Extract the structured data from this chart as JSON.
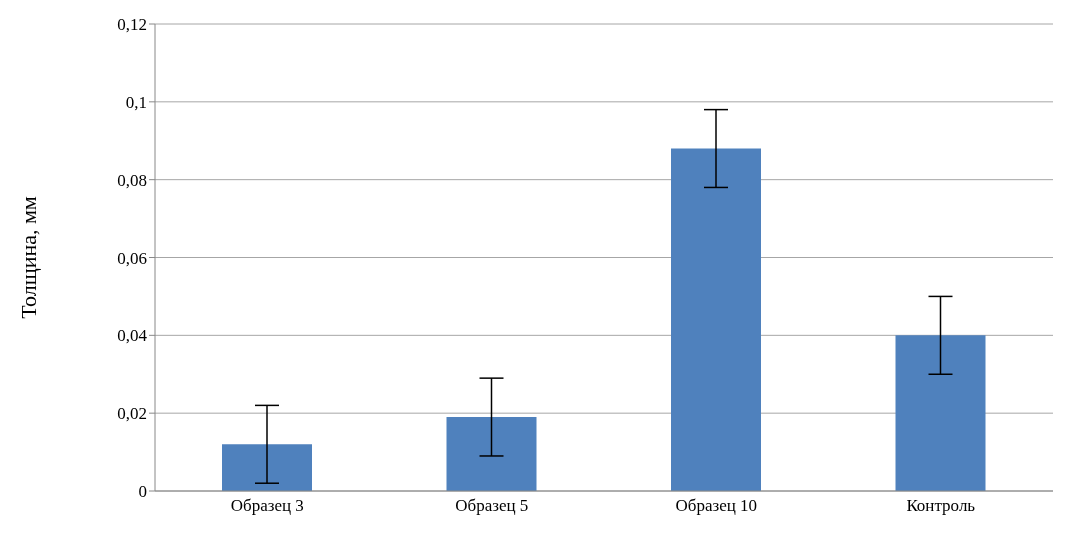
{
  "chart_data": {
    "type": "bar",
    "ylabel": "Толщина, мм",
    "categories": [
      "Образец 3",
      "Образец 5",
      "Образец 10",
      "Контроль"
    ],
    "values": [
      0.012,
      0.019,
      0.088,
      0.04
    ],
    "errors": [
      0.01,
      0.01,
      0.01,
      0.01
    ],
    "color": "#4f81bd",
    "ylim": [
      0,
      0.12
    ],
    "yticks": [
      {
        "value": 0,
        "label": "0"
      },
      {
        "value": 0.02,
        "label": "0,02"
      },
      {
        "value": 0.04,
        "label": "0,04"
      },
      {
        "value": 0.06,
        "label": "0,06"
      },
      {
        "value": 0.08,
        "label": "0,08"
      },
      {
        "value": 0.1,
        "label": "0,1"
      },
      {
        "value": 0.12,
        "label": "0,12"
      }
    ],
    "grid": "y"
  }
}
